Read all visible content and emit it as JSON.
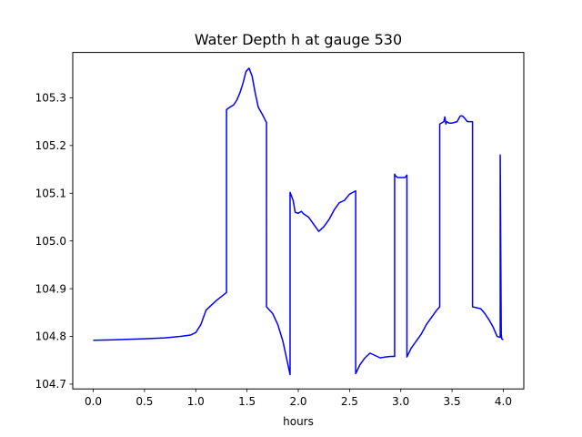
{
  "chart_data": {
    "type": "line",
    "title": "Water Depth h at gauge 530",
    "xlabel": "hours",
    "ylabel": "",
    "xlim": [
      -0.2,
      4.2
    ],
    "ylim": [
      104.69,
      105.395
    ],
    "xticks": [
      0.0,
      0.5,
      1.0,
      1.5,
      2.0,
      2.5,
      3.0,
      3.5,
      4.0
    ],
    "xtick_labels": [
      "0.0",
      "0.5",
      "1.0",
      "1.5",
      "2.0",
      "2.5",
      "3.0",
      "3.5",
      "4.0"
    ],
    "yticks": [
      104.7,
      104.8,
      104.9,
      105.0,
      105.1,
      105.2,
      105.3
    ],
    "ytick_labels": [
      "104.7",
      "104.8",
      "104.9",
      "105.0",
      "105.1",
      "105.2",
      "105.3"
    ],
    "grid": false,
    "series": [
      {
        "color": "#0000ff",
        "x": [
          0.0,
          0.2,
          0.5,
          0.7,
          0.85,
          0.95,
          1.0,
          1.05,
          1.1,
          1.2,
          1.3,
          1.3,
          1.33,
          1.37,
          1.4,
          1.43,
          1.46,
          1.49,
          1.52,
          1.55,
          1.58,
          1.61,
          1.65,
          1.69,
          1.69,
          1.75,
          1.8,
          1.85,
          1.9,
          1.92,
          1.92,
          1.95,
          1.97,
          2.0,
          2.03,
          2.05,
          2.1,
          2.15,
          2.2,
          2.25,
          2.3,
          2.35,
          2.4,
          2.45,
          2.5,
          2.56,
          2.56,
          2.6,
          2.65,
          2.7,
          2.75,
          2.8,
          2.85,
          2.9,
          2.94,
          2.94,
          2.95,
          2.97,
          3.0,
          3.04,
          3.06,
          3.06,
          3.1,
          3.15,
          3.2,
          3.25,
          3.3,
          3.35,
          3.38,
          3.38,
          3.42,
          3.43,
          3.44,
          3.45,
          3.47,
          3.5,
          3.55,
          3.58,
          3.6,
          3.62,
          3.65,
          3.7,
          3.7,
          3.78,
          3.82,
          3.86,
          3.9,
          3.94,
          3.97,
          3.97,
          3.98,
          3.985,
          4.0
        ],
        "values": [
          104.792,
          104.793,
          104.795,
          104.797,
          104.8,
          104.803,
          104.808,
          104.825,
          104.855,
          104.875,
          104.892,
          105.275,
          105.28,
          105.285,
          105.295,
          105.31,
          105.33,
          105.355,
          105.362,
          105.345,
          105.31,
          105.28,
          105.265,
          105.248,
          104.862,
          104.848,
          104.825,
          104.79,
          104.74,
          104.72,
          105.102,
          105.085,
          105.06,
          105.058,
          105.062,
          105.057,
          105.05,
          105.035,
          105.02,
          105.03,
          105.045,
          105.065,
          105.08,
          105.085,
          105.098,
          105.105,
          104.722,
          104.74,
          104.755,
          104.765,
          104.76,
          104.755,
          104.757,
          104.758,
          104.758,
          105.14,
          105.136,
          105.133,
          105.133,
          105.133,
          105.138,
          104.757,
          104.775,
          104.79,
          104.805,
          104.825,
          104.84,
          104.855,
          104.862,
          105.245,
          105.25,
          105.26,
          105.245,
          105.25,
          105.247,
          105.247,
          105.25,
          105.262,
          105.262,
          105.258,
          105.25,
          105.25,
          104.862,
          104.858,
          104.848,
          104.835,
          104.82,
          104.8,
          104.798,
          105.18,
          104.805,
          104.795,
          104.793
        ]
      }
    ]
  }
}
